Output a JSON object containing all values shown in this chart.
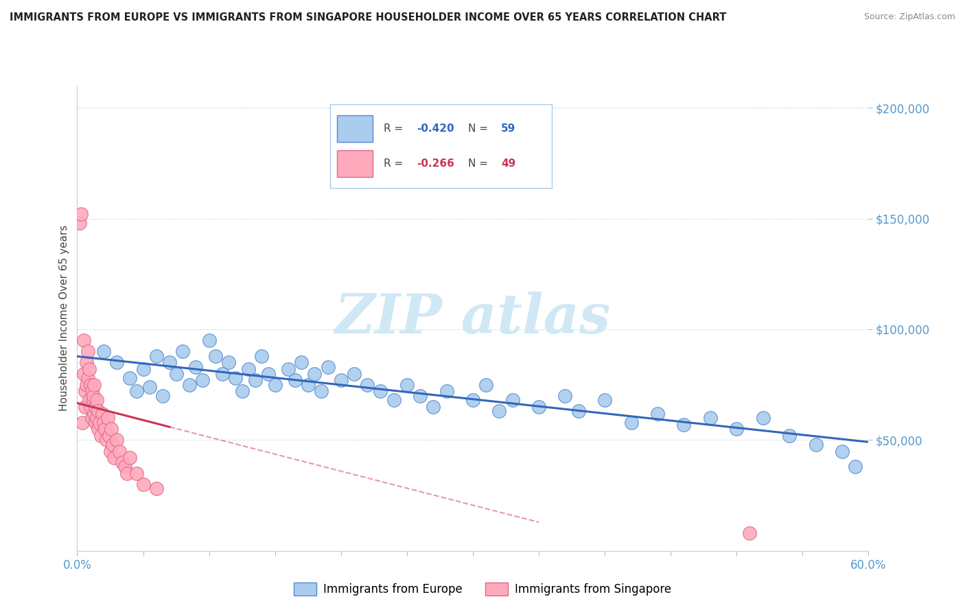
{
  "title": "IMMIGRANTS FROM EUROPE VS IMMIGRANTS FROM SINGAPORE HOUSEHOLDER INCOME OVER 65 YEARS CORRELATION CHART",
  "source": "Source: ZipAtlas.com",
  "ylabel": "Householder Income Over 65 years",
  "xlim": [
    0.0,
    0.6
  ],
  "ylim": [
    0,
    210000
  ],
  "yticks": [
    50000,
    100000,
    150000,
    200000
  ],
  "ytick_labels": [
    "$50,000",
    "$100,000",
    "$150,000",
    "$200,000"
  ],
  "europe_color": "#aaccee",
  "europe_edge_color": "#5588cc",
  "europe_line_color": "#3366bb",
  "singapore_color": "#ffaabc",
  "singapore_edge_color": "#dd6688",
  "singapore_line_color": "#cc3355",
  "watermark_color": "#d0e8f5",
  "background_color": "#ffffff",
  "grid_color": "#ccddee",
  "europe_scatter_x": [
    0.02,
    0.03,
    0.04,
    0.045,
    0.05,
    0.055,
    0.06,
    0.065,
    0.07,
    0.075,
    0.08,
    0.085,
    0.09,
    0.095,
    0.1,
    0.105,
    0.11,
    0.115,
    0.12,
    0.125,
    0.13,
    0.135,
    0.14,
    0.145,
    0.15,
    0.16,
    0.165,
    0.17,
    0.175,
    0.18,
    0.185,
    0.19,
    0.2,
    0.21,
    0.22,
    0.23,
    0.24,
    0.25,
    0.26,
    0.27,
    0.28,
    0.3,
    0.31,
    0.32,
    0.33,
    0.35,
    0.37,
    0.38,
    0.4,
    0.42,
    0.44,
    0.46,
    0.48,
    0.5,
    0.52,
    0.54,
    0.56,
    0.58,
    0.59
  ],
  "europe_scatter_y": [
    90000,
    85000,
    78000,
    72000,
    82000,
    74000,
    88000,
    70000,
    85000,
    80000,
    90000,
    75000,
    83000,
    77000,
    95000,
    88000,
    80000,
    85000,
    78000,
    72000,
    82000,
    77000,
    88000,
    80000,
    75000,
    82000,
    77000,
    85000,
    75000,
    80000,
    72000,
    83000,
    77000,
    80000,
    75000,
    72000,
    68000,
    75000,
    70000,
    65000,
    72000,
    68000,
    75000,
    63000,
    68000,
    65000,
    70000,
    63000,
    68000,
    58000,
    62000,
    57000,
    60000,
    55000,
    60000,
    52000,
    48000,
    45000,
    38000
  ],
  "singapore_scatter_x": [
    0.002,
    0.003,
    0.004,
    0.005,
    0.005,
    0.006,
    0.006,
    0.007,
    0.007,
    0.008,
    0.008,
    0.009,
    0.009,
    0.01,
    0.01,
    0.011,
    0.011,
    0.012,
    0.012,
    0.013,
    0.013,
    0.014,
    0.014,
    0.015,
    0.015,
    0.016,
    0.016,
    0.017,
    0.018,
    0.019,
    0.02,
    0.021,
    0.022,
    0.023,
    0.024,
    0.025,
    0.026,
    0.027,
    0.028,
    0.03,
    0.032,
    0.034,
    0.036,
    0.038,
    0.04,
    0.045,
    0.05,
    0.06,
    0.51
  ],
  "singapore_scatter_y": [
    148000,
    152000,
    58000,
    80000,
    95000,
    72000,
    65000,
    85000,
    75000,
    90000,
    78000,
    68000,
    82000,
    75000,
    65000,
    72000,
    60000,
    68000,
    70000,
    62000,
    75000,
    65000,
    58000,
    68000,
    60000,
    55000,
    63000,
    58000,
    52000,
    62000,
    58000,
    55000,
    50000,
    60000,
    52000,
    45000,
    55000,
    48000,
    42000,
    50000,
    45000,
    40000,
    38000,
    35000,
    42000,
    35000,
    30000,
    28000,
    8000
  ]
}
